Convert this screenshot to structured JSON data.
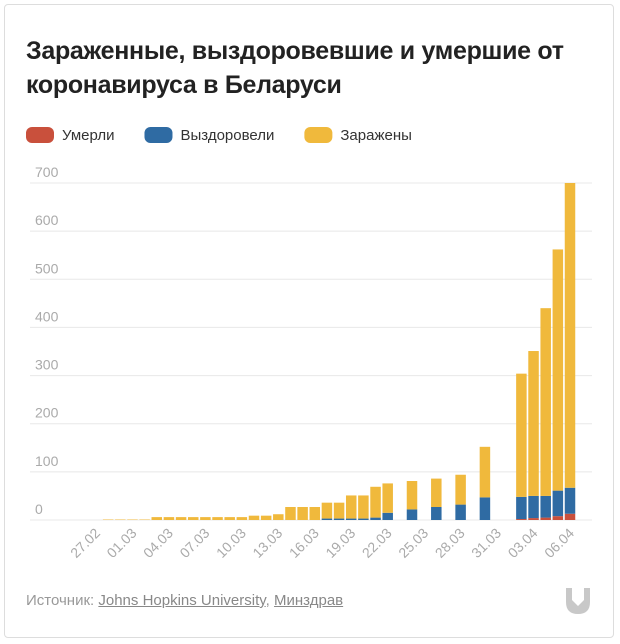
{
  "chart_data": {
    "type": "stacked_bar",
    "title": "Зараженные, выздоровевшие и умершие от коронавируса в Беларуси",
    "categories": [
      "27.02",
      null,
      null,
      "01.03",
      null,
      null,
      "04.03",
      null,
      null,
      "07.03",
      null,
      null,
      "10.03",
      null,
      null,
      "13.03",
      null,
      null,
      "16.03",
      null,
      null,
      "19.03",
      null,
      null,
      "22.03",
      null,
      null,
      "25.03",
      null,
      null,
      "28.03",
      null,
      null,
      "31.03",
      null,
      null,
      "03.04",
      null,
      null,
      "06.04"
    ],
    "series": [
      {
        "name": "Умерли",
        "color": "#c9503c",
        "values": [
          null,
          0,
          0,
          0,
          0,
          0,
          0,
          0,
          0,
          0,
          0,
          0,
          0,
          0,
          0,
          0,
          0,
          0,
          0,
          0,
          0,
          0,
          0,
          0,
          0,
          null,
          0,
          null,
          0,
          null,
          0,
          null,
          0,
          null,
          null,
          2,
          4,
          5,
          8,
          13
        ]
      },
      {
        "name": "Выздоровели",
        "color": "#2f6ba3",
        "values": [
          null,
          0,
          0,
          0,
          0,
          0,
          0,
          0,
          0,
          0,
          0,
          0,
          0,
          0,
          0,
          0,
          0,
          0,
          0,
          3,
          3,
          3,
          3,
          5,
          15,
          null,
          22,
          null,
          27,
          null,
          32,
          null,
          47,
          null,
          null,
          46,
          46,
          45,
          53,
          54
        ]
      },
      {
        "name": "Заражены",
        "color": "#f0b93c",
        "values": [
          null,
          1,
          1,
          1,
          1,
          6,
          6,
          6,
          6,
          6,
          6,
          6,
          6,
          9,
          9,
          12,
          27,
          27,
          27,
          33,
          33,
          48,
          48,
          64,
          61,
          null,
          59,
          null,
          59,
          null,
          62,
          null,
          105,
          null,
          null,
          256,
          301,
          390,
          501,
          633
        ]
      }
    ],
    "ylim": [
      0,
      700
    ],
    "yticks": [
      0,
      100,
      200,
      300,
      400,
      500,
      600,
      700
    ],
    "grid": true,
    "source": {
      "prefix": "Источник:",
      "links": [
        "Johns Hopkins University",
        "Минздрав"
      ],
      "separator": ","
    }
  }
}
